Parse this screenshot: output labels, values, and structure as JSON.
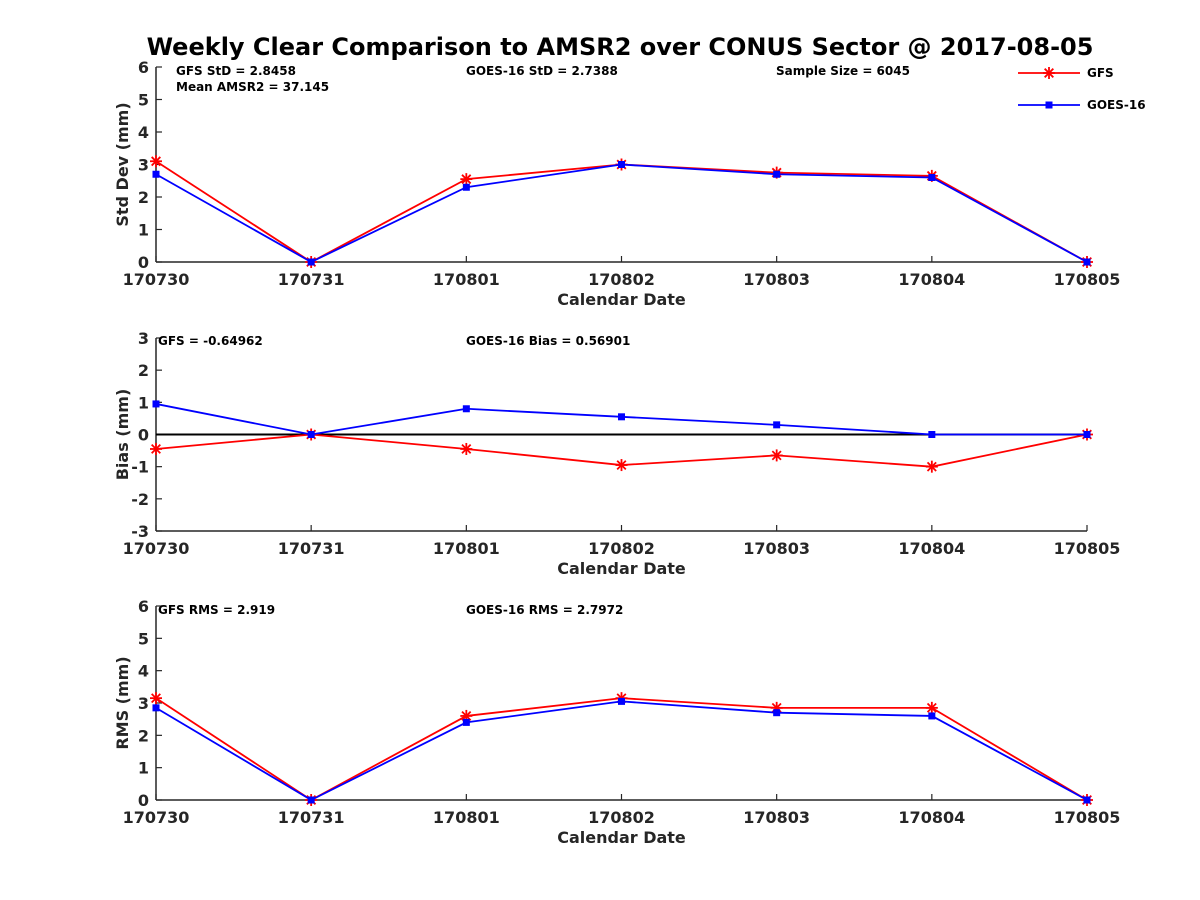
{
  "figure": {
    "title": "Weekly Clear Comparison to AMSR2 over CONUS Sector @ 2017-08-05"
  },
  "legend": {
    "placement": "top-right",
    "entries": [
      {
        "name": "GFS",
        "color": "#ff0000",
        "marker": "asterisk"
      },
      {
        "name": "GOES-16",
        "color": "#0000ff",
        "marker": "square"
      }
    ]
  },
  "chart_data": [
    {
      "type": "line",
      "xlabel": "Calendar Date",
      "ylabel": "Std Dev (mm)",
      "ylim": [
        0,
        6
      ],
      "yticks": [
        "0",
        "1",
        "2",
        "3",
        "4",
        "5",
        "6"
      ],
      "categories": [
        "170730",
        "170731",
        "170801",
        "170802",
        "170803",
        "170804",
        "170805"
      ],
      "zero_line": false,
      "series": [
        {
          "name": "GFS",
          "color": "#ff0000",
          "marker": "asterisk",
          "values": [
            3.1,
            0.0,
            2.55,
            3.0,
            2.75,
            2.65,
            0.0
          ]
        },
        {
          "name": "GOES-16",
          "color": "#0000ff",
          "marker": "square",
          "values": [
            2.7,
            0.0,
            2.3,
            3.0,
            2.7,
            2.6,
            0.0
          ]
        }
      ],
      "annotations": [
        "GFS StD = 2.8458",
        "Mean AMSR2 = 37.145",
        "GOES-16 StD = 2.7388",
        "Sample Size = 6045"
      ]
    },
    {
      "type": "line",
      "xlabel": "Calendar Date",
      "ylabel": "Bias (mm)",
      "ylim": [
        -3,
        3
      ],
      "yticks": [
        "-3",
        "-2",
        "-1",
        "0",
        "1",
        "2",
        "3"
      ],
      "categories": [
        "170730",
        "170731",
        "170801",
        "170802",
        "170803",
        "170804",
        "170805"
      ],
      "zero_line": true,
      "series": [
        {
          "name": "GFS",
          "color": "#ff0000",
          "marker": "asterisk",
          "values": [
            -0.45,
            0.0,
            -0.45,
            -0.95,
            -0.65,
            -1.0,
            0.0
          ]
        },
        {
          "name": "GOES-16",
          "color": "#0000ff",
          "marker": "square",
          "values": [
            0.95,
            0.0,
            0.8,
            0.55,
            0.3,
            0.0,
            0.0
          ]
        }
      ],
      "annotations": [
        "GFS = -0.64962",
        "GOES-16 Bias  = 0.56901"
      ]
    },
    {
      "type": "line",
      "xlabel": "Calendar Date",
      "ylabel": "RMS (mm)",
      "ylim": [
        0,
        6
      ],
      "yticks": [
        "0",
        "1",
        "2",
        "3",
        "4",
        "5",
        "6"
      ],
      "categories": [
        "170730",
        "170731",
        "170801",
        "170802",
        "170803",
        "170804",
        "170805"
      ],
      "zero_line": false,
      "series": [
        {
          "name": "GFS",
          "color": "#ff0000",
          "marker": "asterisk",
          "values": [
            3.15,
            0.0,
            2.6,
            3.15,
            2.85,
            2.85,
            0.0
          ]
        },
        {
          "name": "GOES-16",
          "color": "#0000ff",
          "marker": "square",
          "values": [
            2.85,
            0.0,
            2.4,
            3.05,
            2.7,
            2.6,
            0.0
          ]
        }
      ],
      "annotations": [
        "GFS RMS = 2.919",
        "GOES-16 RMS = 2.7972"
      ]
    }
  ]
}
